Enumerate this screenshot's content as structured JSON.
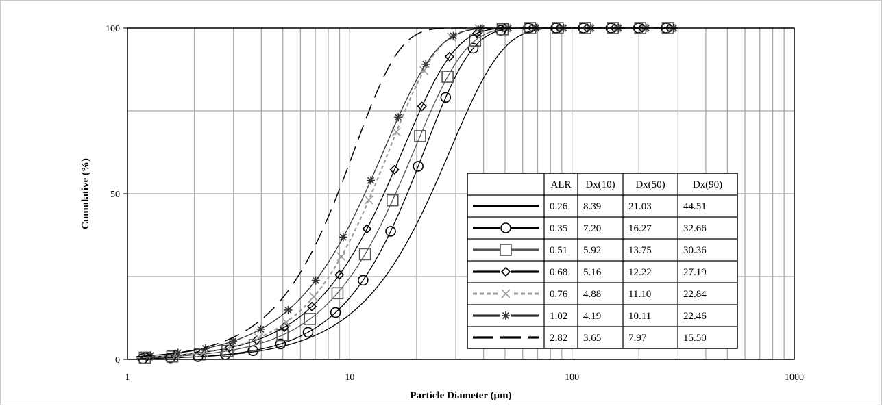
{
  "chart_data": {
    "type": "line",
    "title": "",
    "xlabel": "Particle Diameter (µm)",
    "ylabel": "Cumulative (%)",
    "x_scale": "log",
    "xlim": [
      1,
      1000
    ],
    "ylim": [
      0,
      100
    ],
    "x_ticks": [
      "1",
      "10",
      "100",
      "1000"
    ],
    "y_ticks": [
      "0",
      "50",
      "100"
    ],
    "grid": true,
    "legend": "table-lower-right",
    "table": {
      "headers": [
        "",
        "ALR",
        "Dx(10)",
        "Dx(50)",
        "Dx(90)"
      ],
      "rows": [
        [
          "0.26",
          "8.39",
          "21.03",
          "44.51"
        ],
        [
          "0.35",
          "7.20",
          "16.27",
          "32.66"
        ],
        [
          "0.51",
          "5.92",
          "13.75",
          "30.36"
        ],
        [
          "0.68",
          "5.16",
          "12.22",
          "27.19"
        ],
        [
          "0.76",
          "4.88",
          "11.10",
          "22.84"
        ],
        [
          "1.02",
          "4.19",
          "10.11",
          "22.46"
        ],
        [
          "2.82",
          "3.65",
          "7.97",
          "15.50"
        ]
      ]
    },
    "series": [
      {
        "alr": "0.26",
        "color": "#000000",
        "marker": "none",
        "dash": "solid",
        "d10": 8.39,
        "d50": 21.03,
        "d90": 44.51
      },
      {
        "alr": "0.35",
        "color": "#000000",
        "marker": "circle",
        "dash": "solid",
        "d10": 7.2,
        "d50": 16.27,
        "d90": 32.66
      },
      {
        "alr": "0.51",
        "color": "#555555",
        "marker": "square",
        "dash": "solid",
        "d10": 5.92,
        "d50": 13.75,
        "d90": 30.36
      },
      {
        "alr": "0.68",
        "color": "#000000",
        "marker": "diamond",
        "dash": "solid",
        "d10": 5.16,
        "d50": 12.22,
        "d90": 27.19
      },
      {
        "alr": "0.76",
        "color": "#9a9a9a",
        "marker": "x",
        "dash": "dotted",
        "d10": 4.88,
        "d50": 11.1,
        "d90": 22.84
      },
      {
        "alr": "1.02",
        "color": "#333333",
        "marker": "star",
        "dash": "solid",
        "d10": 4.19,
        "d50": 10.11,
        "d90": 22.46
      },
      {
        "alr": "2.82",
        "color": "#000000",
        "marker": "none",
        "dash": "longdash",
        "d10": 3.65,
        "d50": 7.97,
        "d90": 15.5
      }
    ]
  }
}
